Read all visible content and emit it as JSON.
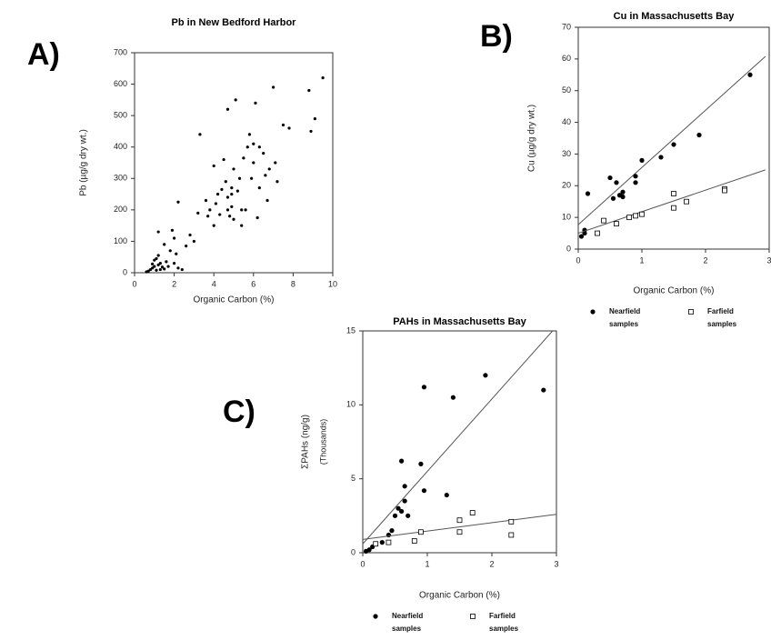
{
  "chart_data": [
    {
      "panel": "A)",
      "type": "scatter",
      "title": "Pb in New Bedford Harbor",
      "xlabel": "Organic Carbon (%)",
      "ylabel": "Pb (µg/g dry wt.)",
      "xlim": [
        0,
        10
      ],
      "xticks": [
        0,
        2,
        4,
        6,
        8,
        10
      ],
      "ylim": [
        0,
        700
      ],
      "yticks": [
        0,
        100,
        200,
        300,
        400,
        500,
        600,
        700
      ],
      "series": [
        {
          "color": "#000000",
          "marker": "dot",
          "x": [
            0.7,
            0.8,
            0.9,
            1.0,
            1.1,
            1.2,
            1.3,
            1.4,
            0.6,
            1.0,
            1.2,
            1.5,
            1.6,
            0.9,
            1.1,
            1.3,
            1.7,
            2.0,
            2.2,
            2.4,
            1.2,
            1.5,
            1.8,
            2.0,
            2.1,
            1.9,
            2.2,
            2.6,
            2.8,
            3.0,
            3.2,
            3.3,
            3.6,
            3.7,
            3.8,
            4.0,
            4.0,
            4.1,
            4.2,
            4.3,
            4.4,
            4.5,
            4.6,
            4.7,
            4.7,
            4.8,
            4.9,
            4.9,
            5.0,
            5.0,
            5.1,
            5.2,
            5.3,
            5.4,
            5.5,
            5.6,
            5.7,
            5.8,
            5.9,
            6.0,
            6.1,
            6.2,
            6.3,
            6.5,
            6.6,
            6.7,
            6.8,
            7.0,
            7.1,
            7.2,
            7.5,
            7.8,
            8.8,
            8.9,
            9.1,
            9.5,
            6.0,
            6.3,
            4.7,
            5.4,
            4.9
          ],
          "values": [
            5,
            10,
            15,
            20,
            8,
            25,
            30,
            18,
            3,
            40,
            55,
            12,
            35,
            28,
            45,
            10,
            20,
            30,
            15,
            10,
            130,
            90,
            70,
            110,
            60,
            135,
            225,
            85,
            120,
            100,
            190,
            440,
            230,
            180,
            200,
            150,
            340,
            220,
            250,
            185,
            265,
            360,
            290,
            240,
            200,
            180,
            270,
            210,
            330,
            170,
            550,
            260,
            300,
            150,
            365,
            200,
            400,
            440,
            300,
            350,
            540,
            175,
            270,
            380,
            310,
            230,
            330,
            590,
            350,
            290,
            470,
            460,
            580,
            450,
            490,
            620,
            410,
            400,
            520,
            200,
            250
          ]
        }
      ]
    },
    {
      "panel": "B)",
      "type": "scatter",
      "title": "Cu in Massachusetts Bay",
      "xlabel": "Organic Carbon (%)",
      "ylabel": "Cu (µg/g dry wt.)",
      "xlim": [
        0,
        3
      ],
      "xticks": [
        0,
        1,
        2,
        3
      ],
      "ylim": [
        0,
        70
      ],
      "yticks": [
        0,
        10,
        20,
        30,
        40,
        50,
        60,
        70
      ],
      "series": [
        {
          "name": "Nearfield samples",
          "color": "#000000",
          "marker": "filled",
          "x": [
            0.05,
            0.1,
            0.1,
            0.15,
            0.5,
            0.55,
            0.6,
            0.65,
            0.7,
            0.7,
            0.9,
            0.9,
            1.0,
            1.3,
            1.5,
            1.9,
            2.7
          ],
          "values": [
            4,
            5,
            6,
            17.5,
            22.5,
            16,
            21,
            17,
            18,
            16.5,
            23,
            21,
            28,
            29,
            33,
            36,
            55
          ],
          "fit": {
            "x": [
              0,
              2.94
            ],
            "y": [
              7.7,
              60.8
            ]
          }
        },
        {
          "name": "Farfield samples",
          "color": "#000000",
          "marker": "open",
          "x": [
            0.3,
            0.4,
            0.6,
            0.8,
            0.9,
            1.0,
            1.5,
            1.5,
            1.7,
            2.3,
            2.3
          ],
          "values": [
            5,
            9,
            8,
            10,
            10.5,
            11,
            17.5,
            13,
            15,
            19,
            18.5
          ],
          "fit": {
            "x": [
              0,
              2.94
            ],
            "y": [
              5,
              25
            ]
          }
        }
      ]
    },
    {
      "panel": "C)",
      "type": "scatter",
      "title": "PAHs in Massachusetts Bay",
      "xlabel": "Organic Carbon (%)",
      "ylabel": "ΣPAHs (ng/g)",
      "ylabel_note": "(Thousands)",
      "xlim": [
        0,
        3
      ],
      "xticks": [
        0,
        1,
        2,
        3
      ],
      "ylim": [
        0,
        15
      ],
      "yticks": [
        0,
        5,
        10,
        15
      ],
      "series": [
        {
          "name": "Nearfield samples",
          "color": "#000000",
          "marker": "filled",
          "x": [
            0.05,
            0.1,
            0.15,
            0.3,
            0.4,
            0.45,
            0.5,
            0.55,
            0.6,
            0.6,
            0.65,
            0.65,
            0.7,
            0.9,
            0.95,
            0.95,
            1.3,
            1.4,
            1.9,
            2.8
          ],
          "values": [
            0.1,
            0.2,
            0.4,
            0.7,
            1.2,
            1.5,
            2.5,
            3,
            2.8,
            6.2,
            3.5,
            4.5,
            2.5,
            6,
            4.2,
            11.2,
            3.9,
            10.5,
            12,
            11
          ],
          "fit": {
            "x": [
              0,
              2.94
            ],
            "y": [
              0.6,
              15
            ]
          }
        },
        {
          "name": "Farfield samples",
          "color": "#000000",
          "marker": "open",
          "x": [
            0.2,
            0.4,
            0.8,
            0.9,
            1.5,
            1.5,
            1.7,
            2.3,
            2.3
          ],
          "values": [
            0.6,
            0.7,
            0.8,
            1.4,
            1.4,
            2.2,
            2.7,
            2.1,
            1.2
          ],
          "fit": {
            "x": [
              0,
              3
            ],
            "y": [
              0.9,
              2.6
            ]
          }
        }
      ]
    }
  ]
}
